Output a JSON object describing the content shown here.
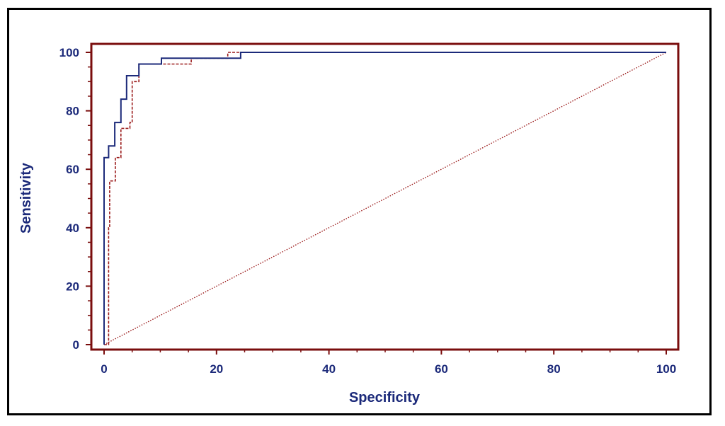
{
  "chart_data": {
    "type": "line",
    "xlabel": "Specificity",
    "ylabel": "Sensitivity",
    "xlim": [
      0,
      100
    ],
    "ylim": [
      0,
      100
    ],
    "x_ticks": [
      "0",
      "20",
      "40",
      "60",
      "80",
      "100"
    ],
    "y_ticks": [
      "0",
      "20",
      "40",
      "60",
      "80",
      "100"
    ],
    "x_tick_values": [
      0,
      20,
      40,
      60,
      80,
      100
    ],
    "y_tick_values": [
      0,
      20,
      40,
      60,
      80,
      100
    ],
    "grid": false,
    "colors": {
      "frame": "#7a0d0d",
      "label": "#1c2a7a",
      "series_1": "#1c2a7a",
      "series_2": "#9b1b1b",
      "reference": "#9b1b1b"
    },
    "series": [
      {
        "style": "solid",
        "x": [
          0,
          0,
          0,
          0,
          0.8,
          0.8,
          1.9,
          1.9,
          3.0,
          3.0,
          4.0,
          4.0,
          6.2,
          6.2,
          10.2,
          10.2,
          24.3,
          24.3,
          100
        ],
        "y": [
          0,
          40,
          56,
          64,
          64,
          68,
          68,
          76,
          76,
          84,
          84,
          92,
          92,
          96,
          96,
          98,
          98,
          100,
          100
        ]
      },
      {
        "style": "dashed",
        "x": [
          0,
          0.8,
          0.8,
          1.0,
          1.0,
          2.0,
          2.0,
          3.0,
          3.0,
          4.6,
          4.6,
          5.0,
          5.0,
          6.2,
          6.2,
          15.5,
          15.5,
          22.0,
          22.0,
          24.5,
          24.5,
          100
        ],
        "y": [
          0,
          0,
          40,
          40,
          56,
          56,
          64,
          64,
          74,
          74,
          76,
          76,
          90,
          90,
          96,
          96,
          98,
          98,
          100,
          100,
          100,
          100
        ]
      },
      {
        "style": "dotted",
        "x": [
          0,
          100
        ],
        "y": [
          0,
          100
        ]
      }
    ]
  }
}
